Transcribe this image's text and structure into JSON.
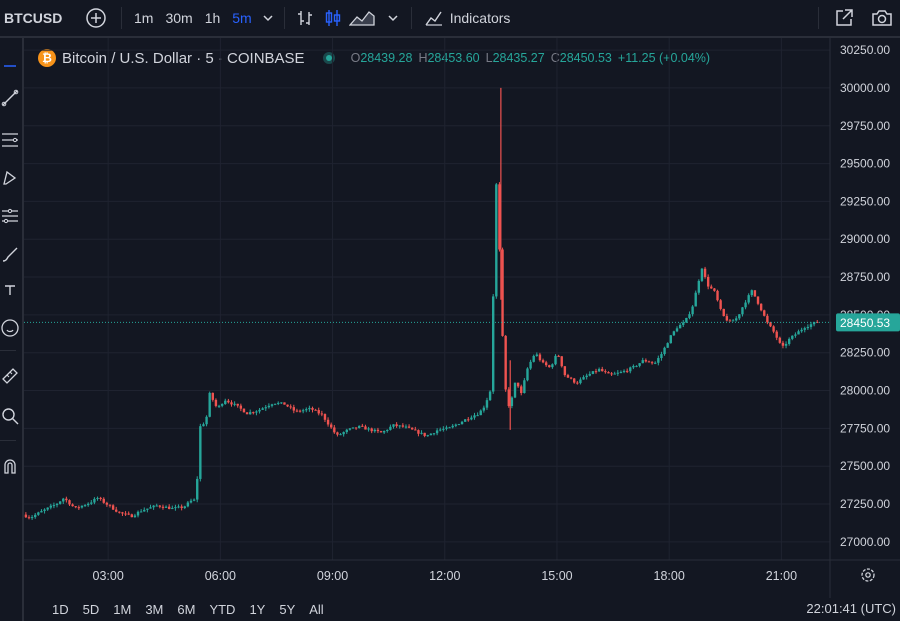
{
  "toolbar": {
    "symbol": "BTCUSD",
    "intervals": [
      "1m",
      "30m",
      "1h",
      "5m"
    ],
    "active_interval": "5m",
    "indicators_label": "Indicators"
  },
  "legend": {
    "title": "Bitcoin / U.S. Dollar · 5 · COINBASE",
    "o_label": "O",
    "o_value": "28439.28",
    "h_label": "H",
    "h_value": "28453.60",
    "l_label": "L",
    "l_value": "28435.27",
    "c_label": "C",
    "c_value": "28450.53",
    "change": "+11.25 (+0.04%)"
  },
  "bottom": {
    "ranges": [
      "1D",
      "5D",
      "1M",
      "3M",
      "6M",
      "YTD",
      "1Y",
      "5Y",
      "All"
    ],
    "clock": "22:01:41 (UTC)"
  },
  "colors": {
    "up": "#26a69a",
    "down": "#ef5350",
    "background": "#131722",
    "grid": "#1f2330",
    "active": "#2962ff"
  },
  "chart_data": {
    "type": "candlestick",
    "symbol": "BTCUSD",
    "interval": "5",
    "exchange": "COINBASE",
    "x_ticks": [
      "03:00",
      "06:00",
      "09:00",
      "12:00",
      "15:00",
      "18:00",
      "21:00"
    ],
    "y_ticks": [
      "30250.00",
      "30000.00",
      "29750.00",
      "29500.00",
      "29250.00",
      "29000.00",
      "28750.00",
      "28500.00",
      "28250.00",
      "28000.00",
      "27750.00",
      "27500.00",
      "27250.00",
      "27000.00"
    ],
    "ylim": [
      26880,
      30330
    ],
    "x_range_hours": [
      0.75,
      22.3
    ],
    "last_price": 28450.53,
    "last_price_label": "28450.53",
    "price_path": [
      [
        0.8,
        27180
      ],
      [
        1.0,
        27160
      ],
      [
        1.3,
        27200
      ],
      [
        1.7,
        27250
      ],
      [
        1.9,
        27290
      ],
      [
        2.2,
        27220
      ],
      [
        2.6,
        27260
      ],
      [
        2.8,
        27290
      ],
      [
        3.1,
        27240
      ],
      [
        3.4,
        27190
      ],
      [
        3.7,
        27170
      ],
      [
        4.0,
        27210
      ],
      [
        4.4,
        27240
      ],
      [
        4.8,
        27220
      ],
      [
        5.1,
        27230
      ],
      [
        5.3,
        27270
      ],
      [
        5.45,
        27280
      ],
      [
        5.5,
        27750
      ],
      [
        5.7,
        27800
      ],
      [
        5.8,
        27980
      ],
      [
        6.0,
        27880
      ],
      [
        6.2,
        27940
      ],
      [
        6.5,
        27900
      ],
      [
        6.8,
        27850
      ],
      [
        7.1,
        27870
      ],
      [
        7.5,
        27920
      ],
      [
        7.8,
        27910
      ],
      [
        8.1,
        27860
      ],
      [
        8.5,
        27880
      ],
      [
        8.8,
        27840
      ],
      [
        9.0,
        27770
      ],
      [
        9.2,
        27700
      ],
      [
        9.5,
        27740
      ],
      [
        9.8,
        27760
      ],
      [
        10.1,
        27740
      ],
      [
        10.4,
        27720
      ],
      [
        10.7,
        27770
      ],
      [
        11.0,
        27760
      ],
      [
        11.3,
        27730
      ],
      [
        11.6,
        27700
      ],
      [
        11.9,
        27740
      ],
      [
        12.2,
        27750
      ],
      [
        12.5,
        27790
      ],
      [
        12.8,
        27830
      ],
      [
        13.0,
        27850
      ],
      [
        13.15,
        27900
      ],
      [
        13.3,
        28000
      ],
      [
        13.4,
        28800
      ],
      [
        13.45,
        29420
      ],
      [
        13.55,
        28900
      ],
      [
        13.65,
        28200
      ],
      [
        13.75,
        27880
      ],
      [
        13.9,
        27960
      ],
      [
        14.0,
        28100
      ],
      [
        14.1,
        27950
      ],
      [
        14.3,
        28150
      ],
      [
        14.5,
        28250
      ],
      [
        14.7,
        28180
      ],
      [
        14.9,
        28150
      ],
      [
        15.1,
        28250
      ],
      [
        15.3,
        28100
      ],
      [
        15.6,
        28050
      ],
      [
        15.9,
        28100
      ],
      [
        16.2,
        28140
      ],
      [
        16.5,
        28100
      ],
      [
        16.8,
        28120
      ],
      [
        17.1,
        28150
      ],
      [
        17.4,
        28200
      ],
      [
        17.7,
        28180
      ],
      [
        17.9,
        28250
      ],
      [
        18.1,
        28350
      ],
      [
        18.3,
        28420
      ],
      [
        18.5,
        28450
      ],
      [
        18.7,
        28550
      ],
      [
        18.85,
        28700
      ],
      [
        18.95,
        28820
      ],
      [
        19.1,
        28700
      ],
      [
        19.3,
        28650
      ],
      [
        19.5,
        28500
      ],
      [
        19.7,
        28450
      ],
      [
        19.9,
        28480
      ],
      [
        20.1,
        28580
      ],
      [
        20.3,
        28660
      ],
      [
        20.5,
        28560
      ],
      [
        20.7,
        28450
      ],
      [
        20.9,
        28380
      ],
      [
        21.1,
        28280
      ],
      [
        21.3,
        28340
      ],
      [
        21.5,
        28380
      ],
      [
        21.7,
        28420
      ],
      [
        21.9,
        28440
      ],
      [
        22.0,
        28450
      ]
    ],
    "spikes": [
      {
        "t": 13.5,
        "high": 30000,
        "low": 28600
      },
      {
        "t": 13.75,
        "high": 28200,
        "low": 27740
      }
    ]
  }
}
